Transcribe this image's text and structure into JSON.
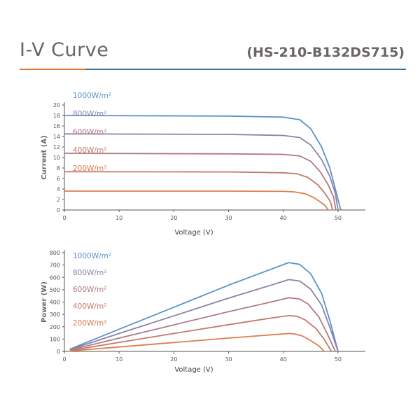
{
  "header": {
    "title": "I-V Curve",
    "model": "(HS-210-B132DS715)"
  },
  "colors": {
    "1000": "#5b93c9",
    "800": "#8a82a9",
    "600": "#b07a84",
    "400": "#c4796c",
    "200": "#dd7d4a",
    "title": "#6b6664"
  },
  "chart_data": [
    {
      "type": "line",
      "title": "",
      "xlabel": "Voltage (V)",
      "ylabel": "Current (A)",
      "xlim": [
        0,
        55
      ],
      "ylim": [
        0,
        20
      ],
      "xticks": [
        "0",
        "10",
        "20",
        "30",
        "40",
        "50"
      ],
      "yticks": [
        "0",
        "2",
        "4",
        "6",
        "8",
        "10",
        "12",
        "14",
        "16",
        "18",
        "20"
      ],
      "series": [
        {
          "name": "1000W/m²",
          "color_key": "1000",
          "x": [
            0,
            30,
            40,
            43,
            45,
            47,
            48.5,
            49.5,
            50.5
          ],
          "y": [
            18.0,
            17.9,
            17.7,
            17.2,
            15.5,
            12.0,
            8.0,
            4.0,
            0
          ]
        },
        {
          "name": "800W/m²",
          "color_key": "800",
          "x": [
            0,
            30,
            40,
            43,
            45,
            47,
            48.5,
            49.5,
            50.0
          ],
          "y": [
            14.5,
            14.4,
            14.2,
            13.8,
            12.4,
            9.6,
            6.4,
            3.2,
            0
          ]
        },
        {
          "name": "600W/m²",
          "color_key": "600",
          "x": [
            0,
            30,
            40,
            43,
            45,
            46.8,
            48.2,
            49.2,
            49.6
          ],
          "y": [
            10.8,
            10.7,
            10.6,
            10.3,
            9.3,
            7.2,
            4.8,
            2.4,
            0
          ]
        },
        {
          "name": "400W/m²",
          "color_key": "400",
          "x": [
            0,
            30,
            40,
            42.5,
            44.5,
            46.3,
            47.6,
            48.6,
            49.0
          ],
          "y": [
            7.3,
            7.25,
            7.1,
            6.9,
            6.2,
            4.8,
            3.2,
            1.6,
            0
          ]
        },
        {
          "name": "200W/m²",
          "color_key": "200",
          "x": [
            0,
            30,
            40,
            42,
            44,
            45.5,
            46.7,
            47.7,
            48.2
          ],
          "y": [
            3.6,
            3.6,
            3.55,
            3.45,
            3.1,
            2.4,
            1.6,
            0.8,
            0
          ]
        }
      ]
    },
    {
      "type": "line",
      "title": "",
      "xlabel": "Voltage (V)",
      "ylabel": "Power (W)",
      "xlim": [
        0,
        55
      ],
      "ylim": [
        0,
        800
      ],
      "xticks": [
        "0",
        "10",
        "20",
        "30",
        "40",
        "50"
      ],
      "yticks": [
        "0",
        "100",
        "200",
        "300",
        "400",
        "500",
        "600",
        "700",
        "800"
      ],
      "series": [
        {
          "name": "1000W/m²",
          "color_key": "1000",
          "x": [
            1,
            10,
            20,
            30,
            38,
            41,
            43,
            45,
            47,
            48.5,
            50
          ],
          "y": [
            18,
            180,
            358,
            537,
            670,
            720,
            705,
            630,
            470,
            250,
            0
          ]
        },
        {
          "name": "800W/m²",
          "color_key": "800",
          "x": [
            1,
            10,
            20,
            30,
            38,
            41,
            43,
            45,
            47,
            48.5,
            50
          ],
          "y": [
            15,
            145,
            288,
            432,
            540,
            582,
            570,
            505,
            375,
            195,
            0
          ]
        },
        {
          "name": "600W/m²",
          "color_key": "600",
          "x": [
            1,
            10,
            20,
            30,
            38,
            41,
            43,
            44.5,
            46.5,
            48,
            49.5
          ],
          "y": [
            11,
            108,
            215,
            322,
            403,
            435,
            425,
            385,
            280,
            145,
            0
          ]
        },
        {
          "name": "400W/m²",
          "color_key": "400",
          "x": [
            1,
            10,
            20,
            30,
            38,
            41,
            42.5,
            44,
            46,
            47.5,
            48.8
          ],
          "y": [
            7,
            73,
            145,
            217,
            272,
            290,
            285,
            255,
            185,
            95,
            0
          ]
        },
        {
          "name": "200W/m²",
          "color_key": "200",
          "x": [
            1,
            10,
            20,
            30,
            38,
            41,
            42,
            43.5,
            45,
            46.5,
            47.5
          ],
          "y": [
            4,
            36,
            72,
            108,
            135,
            145,
            142,
            125,
            88,
            45,
            0
          ]
        }
      ]
    }
  ]
}
